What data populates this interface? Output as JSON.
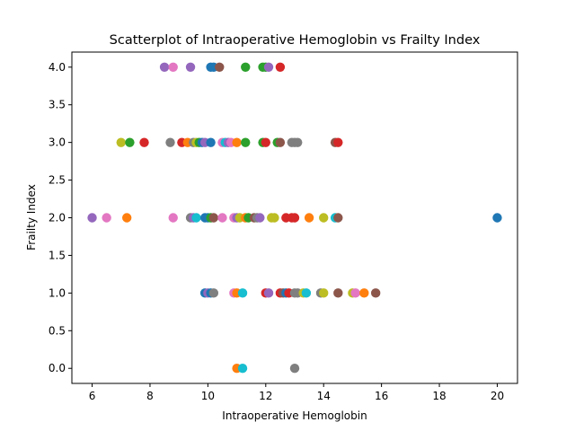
{
  "chart_data": {
    "type": "scatter",
    "title": "Scatterplot of Intraoperative Hemoglobin vs Frailty Index",
    "xlabel": "Intraoperative Hemoglobin",
    "ylabel": "Frailty Index",
    "xlim": [
      5.3,
      20.7
    ],
    "ylim": [
      -0.2,
      4.2
    ],
    "xticks": [
      6,
      8,
      10,
      12,
      14,
      16,
      18,
      20
    ],
    "yticks": [
      0.0,
      0.5,
      1.0,
      1.5,
      2.0,
      2.5,
      3.0,
      3.5,
      4.0
    ],
    "xtick_labels": [
      "6",
      "8",
      "10",
      "12",
      "14",
      "16",
      "18",
      "20"
    ],
    "ytick_labels": [
      "0.0",
      "0.5",
      "1.0",
      "1.5",
      "2.0",
      "2.5",
      "3.0",
      "3.5",
      "4.0"
    ],
    "grid": false,
    "legend": "none",
    "palette": [
      "#1f77b4",
      "#ff7f0e",
      "#2ca02c",
      "#d62728",
      "#9467bd",
      "#8c564b",
      "#e377c2",
      "#7f7f7f",
      "#bcbd22",
      "#17becf"
    ],
    "points": [
      {
        "x": 8.5,
        "y": 4,
        "c": 4
      },
      {
        "x": 8.8,
        "y": 4,
        "c": 6
      },
      {
        "x": 9.4,
        "y": 4,
        "c": 4
      },
      {
        "x": 10.1,
        "y": 4,
        "c": 0
      },
      {
        "x": 10.2,
        "y": 4,
        "c": 0
      },
      {
        "x": 10.4,
        "y": 4,
        "c": 5
      },
      {
        "x": 11.3,
        "y": 4,
        "c": 2
      },
      {
        "x": 11.9,
        "y": 4,
        "c": 2
      },
      {
        "x": 12.0,
        "y": 4,
        "c": 2
      },
      {
        "x": 12.1,
        "y": 4,
        "c": 4
      },
      {
        "x": 12.5,
        "y": 4,
        "c": 3
      },
      {
        "x": 7.0,
        "y": 3,
        "c": 8
      },
      {
        "x": 7.3,
        "y": 3,
        "c": 2
      },
      {
        "x": 7.8,
        "y": 3,
        "c": 3
      },
      {
        "x": 8.7,
        "y": 3,
        "c": 7
      },
      {
        "x": 9.1,
        "y": 3,
        "c": 3
      },
      {
        "x": 9.3,
        "y": 3,
        "c": 1
      },
      {
        "x": 9.5,
        "y": 3,
        "c": 7
      },
      {
        "x": 9.6,
        "y": 3,
        "c": 8
      },
      {
        "x": 9.7,
        "y": 3,
        "c": 2
      },
      {
        "x": 9.8,
        "y": 3,
        "c": 0
      },
      {
        "x": 9.9,
        "y": 3,
        "c": 4
      },
      {
        "x": 10.1,
        "y": 3,
        "c": 0
      },
      {
        "x": 10.5,
        "y": 3,
        "c": 6
      },
      {
        "x": 10.6,
        "y": 3,
        "c": 9
      },
      {
        "x": 10.7,
        "y": 3,
        "c": 4
      },
      {
        "x": 10.8,
        "y": 3,
        "c": 6
      },
      {
        "x": 11.0,
        "y": 3,
        "c": 1
      },
      {
        "x": 11.3,
        "y": 3,
        "c": 2
      },
      {
        "x": 11.9,
        "y": 3,
        "c": 2
      },
      {
        "x": 12.0,
        "y": 3,
        "c": 3
      },
      {
        "x": 12.4,
        "y": 3,
        "c": 2
      },
      {
        "x": 12.5,
        "y": 3,
        "c": 5
      },
      {
        "x": 12.9,
        "y": 3,
        "c": 7
      },
      {
        "x": 13.0,
        "y": 3,
        "c": 7
      },
      {
        "x": 13.1,
        "y": 3,
        "c": 7
      },
      {
        "x": 14.4,
        "y": 3,
        "c": 5
      },
      {
        "x": 14.5,
        "y": 3,
        "c": 3
      },
      {
        "x": 6.0,
        "y": 2,
        "c": 4
      },
      {
        "x": 6.5,
        "y": 2,
        "c": 6
      },
      {
        "x": 7.2,
        "y": 2,
        "c": 1
      },
      {
        "x": 8.8,
        "y": 2,
        "c": 6
      },
      {
        "x": 9.4,
        "y": 2,
        "c": 7
      },
      {
        "x": 9.5,
        "y": 2,
        "c": 4
      },
      {
        "x": 9.6,
        "y": 2,
        "c": 9
      },
      {
        "x": 9.9,
        "y": 2,
        "c": 0
      },
      {
        "x": 10.0,
        "y": 2,
        "c": 0
      },
      {
        "x": 10.1,
        "y": 2,
        "c": 2
      },
      {
        "x": 10.2,
        "y": 2,
        "c": 5
      },
      {
        "x": 10.5,
        "y": 2,
        "c": 6
      },
      {
        "x": 10.9,
        "y": 2,
        "c": 6
      },
      {
        "x": 11.0,
        "y": 2,
        "c": 4
      },
      {
        "x": 11.1,
        "y": 2,
        "c": 8
      },
      {
        "x": 11.3,
        "y": 2,
        "c": 1
      },
      {
        "x": 11.4,
        "y": 2,
        "c": 2
      },
      {
        "x": 11.6,
        "y": 2,
        "c": 5
      },
      {
        "x": 11.7,
        "y": 2,
        "c": 7
      },
      {
        "x": 11.8,
        "y": 2,
        "c": 4
      },
      {
        "x": 12.2,
        "y": 2,
        "c": 8
      },
      {
        "x": 12.3,
        "y": 2,
        "c": 8
      },
      {
        "x": 12.7,
        "y": 2,
        "c": 3
      },
      {
        "x": 12.9,
        "y": 2,
        "c": 3
      },
      {
        "x": 13.0,
        "y": 2,
        "c": 3
      },
      {
        "x": 13.5,
        "y": 2,
        "c": 1
      },
      {
        "x": 14.0,
        "y": 2,
        "c": 8
      },
      {
        "x": 14.4,
        "y": 2,
        "c": 9
      },
      {
        "x": 14.5,
        "y": 2,
        "c": 5
      },
      {
        "x": 20.0,
        "y": 2,
        "c": 0
      },
      {
        "x": 9.9,
        "y": 1,
        "c": 0
      },
      {
        "x": 10.0,
        "y": 1,
        "c": 4
      },
      {
        "x": 10.1,
        "y": 1,
        "c": 0
      },
      {
        "x": 10.2,
        "y": 1,
        "c": 7
      },
      {
        "x": 10.9,
        "y": 1,
        "c": 6
      },
      {
        "x": 11.0,
        "y": 1,
        "c": 1
      },
      {
        "x": 11.2,
        "y": 1,
        "c": 9
      },
      {
        "x": 12.0,
        "y": 1,
        "c": 3
      },
      {
        "x": 12.1,
        "y": 1,
        "c": 4
      },
      {
        "x": 12.5,
        "y": 1,
        "c": 3
      },
      {
        "x": 12.6,
        "y": 1,
        "c": 5
      },
      {
        "x": 12.7,
        "y": 1,
        "c": 0
      },
      {
        "x": 12.8,
        "y": 1,
        "c": 3
      },
      {
        "x": 13.0,
        "y": 1,
        "c": 7
      },
      {
        "x": 13.1,
        "y": 1,
        "c": 7
      },
      {
        "x": 13.3,
        "y": 1,
        "c": 8
      },
      {
        "x": 13.4,
        "y": 1,
        "c": 9
      },
      {
        "x": 13.9,
        "y": 1,
        "c": 7
      },
      {
        "x": 14.0,
        "y": 1,
        "c": 8
      },
      {
        "x": 14.5,
        "y": 1,
        "c": 5
      },
      {
        "x": 15.0,
        "y": 1,
        "c": 8
      },
      {
        "x": 15.1,
        "y": 1,
        "c": 6
      },
      {
        "x": 15.4,
        "y": 1,
        "c": 1
      },
      {
        "x": 15.8,
        "y": 1,
        "c": 5
      },
      {
        "x": 11.0,
        "y": 0,
        "c": 1
      },
      {
        "x": 11.2,
        "y": 0,
        "c": 9
      },
      {
        "x": 13.0,
        "y": 0,
        "c": 7
      }
    ]
  }
}
